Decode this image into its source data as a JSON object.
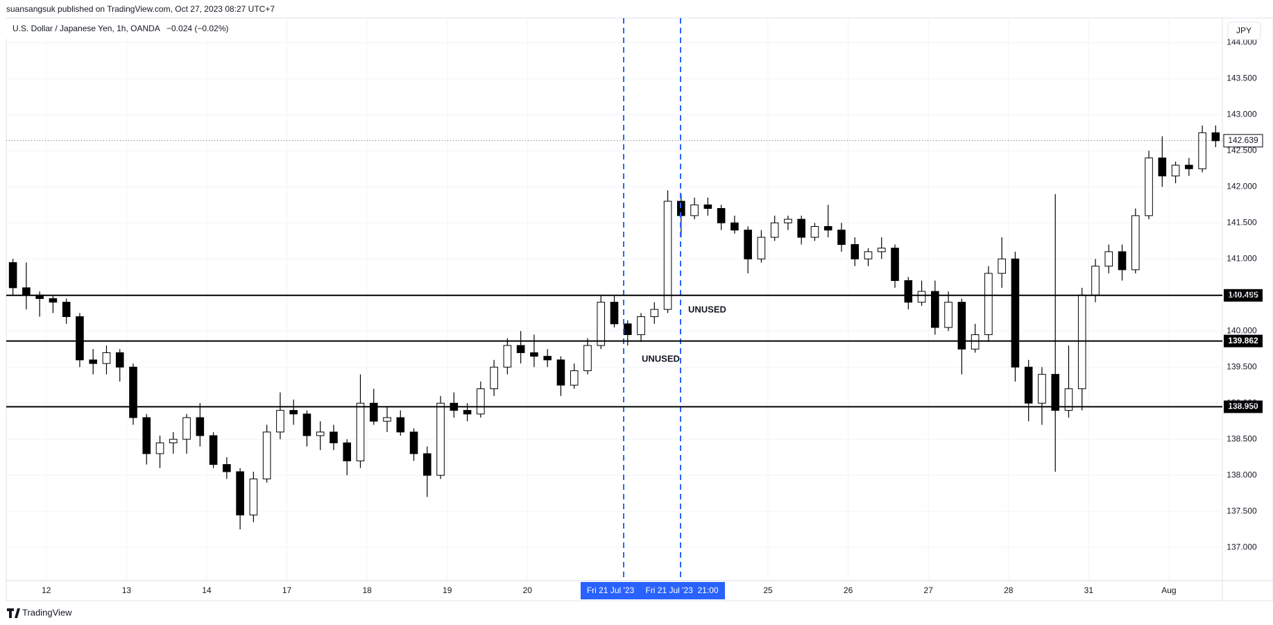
{
  "header": {
    "byline": "suansangsuk published on TradingView.com, Oct 27, 2023 08:27 UTC+7",
    "footer": "TradingView"
  },
  "chart_data": {
    "type": "candlestick",
    "title": "U.S. Dollar / Japanese Yen, 1h, OANDA",
    "change": "−0.024 (−0.02%)",
    "currency": "JPY",
    "ylim": [
      136.54,
      144.34
    ],
    "yticks": [
      {
        "value": 137,
        "label": "137.000"
      },
      {
        "value": 137.5,
        "label": "137.500"
      },
      {
        "value": 138,
        "label": "138.000"
      },
      {
        "value": 138.5,
        "label": "138.500"
      },
      {
        "value": 139,
        "label": "139.000"
      },
      {
        "value": 139.5,
        "label": "139.500"
      },
      {
        "value": 140,
        "label": "140.000"
      },
      {
        "value": 140.5,
        "label": "140.500"
      },
      {
        "value": 141,
        "label": "141.000"
      },
      {
        "value": 141.5,
        "label": "141.500"
      },
      {
        "value": 142,
        "label": "142.000"
      },
      {
        "value": 142.5,
        "label": "142.500"
      },
      {
        "value": 143,
        "label": "143.000"
      },
      {
        "value": 143.5,
        "label": "143.500"
      },
      {
        "value": 144,
        "label": "144.000"
      }
    ],
    "grid": true,
    "up_color": "#ffffff",
    "down_color": "#000000",
    "days": [
      {
        "label": null,
        "candles": [
          [
            140.95,
            141.0,
            140.5,
            140.6
          ],
          [
            140.6,
            140.95,
            140.3,
            140.5
          ],
          [
            140.5,
            140.55,
            140.2,
            140.45
          ]
        ]
      },
      {
        "label": "12",
        "candles": [
          [
            140.45,
            140.5,
            140.25,
            140.4
          ],
          [
            140.4,
            140.45,
            140.1,
            140.2
          ],
          [
            140.2,
            140.25,
            139.5,
            139.6
          ],
          [
            139.6,
            139.75,
            139.4,
            139.55
          ],
          [
            139.55,
            139.8,
            139.4,
            139.7
          ],
          [
            139.7,
            139.75,
            139.3,
            139.5
          ]
        ]
      },
      {
        "label": "13",
        "candles": [
          [
            139.5,
            139.55,
            138.7,
            138.8
          ],
          [
            138.8,
            138.85,
            138.15,
            138.3
          ],
          [
            138.3,
            138.55,
            138.1,
            138.45
          ],
          [
            138.45,
            138.6,
            138.3,
            138.5
          ],
          [
            138.5,
            138.85,
            138.3,
            138.8
          ],
          [
            138.8,
            139.0,
            138.4,
            138.55
          ]
        ]
      },
      {
        "label": "14",
        "candles": [
          [
            138.55,
            138.6,
            138.1,
            138.15
          ],
          [
            138.15,
            138.25,
            137.95,
            138.05
          ],
          [
            138.05,
            138.1,
            137.25,
            137.45
          ],
          [
            137.45,
            138.05,
            137.35,
            137.95
          ],
          [
            137.95,
            138.7,
            137.9,
            138.6
          ],
          [
            138.6,
            139.15,
            138.5,
            138.9
          ]
        ]
      },
      {
        "label": "17",
        "candles": [
          [
            138.9,
            139.05,
            138.7,
            138.85
          ],
          [
            138.85,
            138.9,
            138.4,
            138.55
          ],
          [
            138.55,
            138.75,
            138.35,
            138.6
          ],
          [
            138.6,
            138.7,
            138.35,
            138.45
          ],
          [
            138.45,
            138.5,
            138.0,
            138.2
          ],
          [
            138.2,
            139.4,
            138.1,
            139.0
          ]
        ]
      },
      {
        "label": "18",
        "candles": [
          [
            139.0,
            139.2,
            138.7,
            138.75
          ],
          [
            138.75,
            138.95,
            138.6,
            138.8
          ],
          [
            138.8,
            138.9,
            138.55,
            138.6
          ],
          [
            138.6,
            138.65,
            138.2,
            138.3
          ],
          [
            138.3,
            138.4,
            137.7,
            138.0
          ],
          [
            138.0,
            139.1,
            137.95,
            139.0
          ]
        ]
      },
      {
        "label": "19",
        "candles": [
          [
            139.0,
            139.15,
            138.8,
            138.9
          ],
          [
            138.9,
            139.0,
            138.75,
            138.85
          ],
          [
            138.85,
            139.3,
            138.8,
            139.2
          ],
          [
            139.2,
            139.6,
            139.1,
            139.5
          ],
          [
            139.5,
            139.9,
            139.4,
            139.8
          ],
          [
            139.8,
            140.0,
            139.55,
            139.7
          ]
        ]
      },
      {
        "label": "20",
        "candles": [
          [
            139.7,
            139.95,
            139.5,
            139.65
          ],
          [
            139.65,
            139.75,
            139.5,
            139.6
          ],
          [
            139.6,
            139.65,
            139.1,
            139.25
          ],
          [
            139.25,
            139.55,
            139.2,
            139.45
          ],
          [
            139.45,
            139.9,
            139.4,
            139.8
          ],
          [
            139.8,
            140.5,
            139.75,
            140.4
          ]
        ]
      },
      {
        "label": null,
        "candles": [
          [
            140.4,
            140.5,
            140.05,
            140.1
          ],
          [
            140.1,
            140.15,
            139.8,
            139.95
          ],
          [
            139.95,
            140.25,
            139.85,
            140.2
          ],
          [
            140.2,
            140.4,
            140.1,
            140.3
          ],
          [
            140.3,
            141.95,
            140.25,
            141.8
          ],
          [
            141.8,
            141.9,
            141.3,
            141.6
          ]
        ]
      },
      {
        "label": null,
        "candles": [
          [
            141.6,
            141.85,
            141.55,
            141.75
          ],
          [
            141.75,
            141.85,
            141.6,
            141.7
          ],
          [
            141.7,
            141.75,
            141.4,
            141.5
          ],
          [
            141.5,
            141.6,
            141.35,
            141.4
          ],
          [
            141.4,
            141.45,
            140.8,
            141.0
          ],
          [
            141.0,
            141.4,
            140.95,
            141.3
          ]
        ]
      },
      {
        "label": "25",
        "candles": [
          [
            141.3,
            141.6,
            141.25,
            141.5
          ],
          [
            141.5,
            141.6,
            141.4,
            141.55
          ],
          [
            141.55,
            141.6,
            141.2,
            141.3
          ],
          [
            141.3,
            141.5,
            141.25,
            141.45
          ],
          [
            141.45,
            141.75,
            141.3,
            141.4
          ],
          [
            141.4,
            141.5,
            141.1,
            141.2
          ]
        ]
      },
      {
        "label": "26",
        "candles": [
          [
            141.2,
            141.3,
            140.9,
            141.0
          ],
          [
            141.0,
            141.15,
            140.9,
            141.1
          ],
          [
            141.1,
            141.3,
            141.0,
            141.15
          ],
          [
            141.15,
            141.2,
            140.6,
            140.7
          ],
          [
            140.7,
            140.75,
            140.3,
            140.4
          ],
          [
            140.4,
            140.7,
            140.35,
            140.55
          ]
        ]
      },
      {
        "label": "27",
        "candles": [
          [
            140.55,
            140.7,
            139.95,
            140.05
          ],
          [
            140.05,
            140.55,
            140.0,
            140.4
          ],
          [
            140.4,
            140.45,
            139.4,
            139.75
          ],
          [
            139.75,
            140.1,
            139.7,
            139.95
          ],
          [
            139.95,
            140.9,
            139.85,
            140.8
          ],
          [
            140.8,
            141.3,
            140.6,
            141.0
          ]
        ]
      },
      {
        "label": "28",
        "candles": [
          [
            141.0,
            141.1,
            139.3,
            139.5
          ],
          [
            139.5,
            139.6,
            138.75,
            139.0
          ],
          [
            139.0,
            139.5,
            138.7,
            139.4
          ],
          [
            139.4,
            141.9,
            138.05,
            138.9
          ],
          [
            138.9,
            139.8,
            138.8,
            139.2
          ],
          [
            139.2,
            140.6,
            138.9,
            140.5
          ]
        ]
      },
      {
        "label": "31",
        "candles": [
          [
            140.5,
            141.0,
            140.4,
            140.9
          ],
          [
            140.9,
            141.2,
            140.8,
            141.1
          ],
          [
            141.1,
            141.2,
            140.7,
            140.85
          ],
          [
            140.85,
            141.7,
            140.8,
            141.6
          ],
          [
            141.6,
            142.5,
            141.55,
            142.4
          ],
          [
            142.4,
            142.7,
            142.0,
            142.15
          ]
        ]
      },
      {
        "label": "Aug",
        "candles": [
          [
            142.15,
            142.35,
            142.05,
            142.3
          ],
          [
            142.3,
            142.4,
            142.15,
            142.25
          ],
          [
            142.25,
            142.85,
            142.2,
            142.75
          ],
          [
            142.75,
            142.85,
            142.55,
            142.639
          ]
        ]
      }
    ],
    "levels": [
      140.495,
      139.862,
      {
        "value": 138.95,
        "label": "138.950"
      }
    ],
    "annotations": [
      "UNUSED",
      "UNUSED"
    ],
    "crosshair_labels": [
      "Fri 21 Jul '23",
      "Fri 21 Jul '23  21:00"
    ]
  }
}
